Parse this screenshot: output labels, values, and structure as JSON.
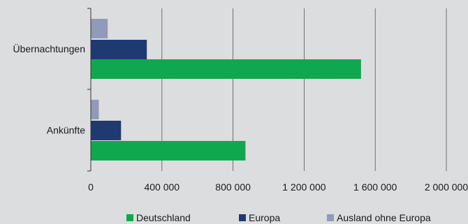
{
  "chart_data": {
    "type": "bar",
    "orientation": "horizontal",
    "title": "",
    "xlabel": "",
    "ylabel": "",
    "categories": [
      "Übernachtungen",
      "Ankünfte"
    ],
    "series": [
      {
        "name": "Ausland ohne Europa",
        "color": "#8f9bb8",
        "values": [
          95000,
          45000
        ]
      },
      {
        "name": "Europa",
        "color": "#1f3a70",
        "values": [
          315000,
          170000
        ]
      },
      {
        "name": "Deutschland",
        "color": "#10a84e",
        "values": [
          1520000,
          870000
        ]
      }
    ],
    "xlim": [
      0,
      2000000
    ],
    "xticks": [
      0,
      400000,
      800000,
      1200000,
      1600000,
      2000000
    ],
    "xtick_labels": [
      "0",
      "400 000",
      "800 000",
      "1 200 000",
      "1 600 000",
      "2 000 000"
    ],
    "grid": "vertical",
    "legend": {
      "position": "bottom",
      "entries": [
        {
          "name": "Deutschland",
          "color": "#10a84e"
        },
        {
          "name": "Europa",
          "color": "#1f3a70"
        },
        {
          "name": "Ausland ohne Europa",
          "color": "#8f9bb8"
        }
      ]
    }
  }
}
